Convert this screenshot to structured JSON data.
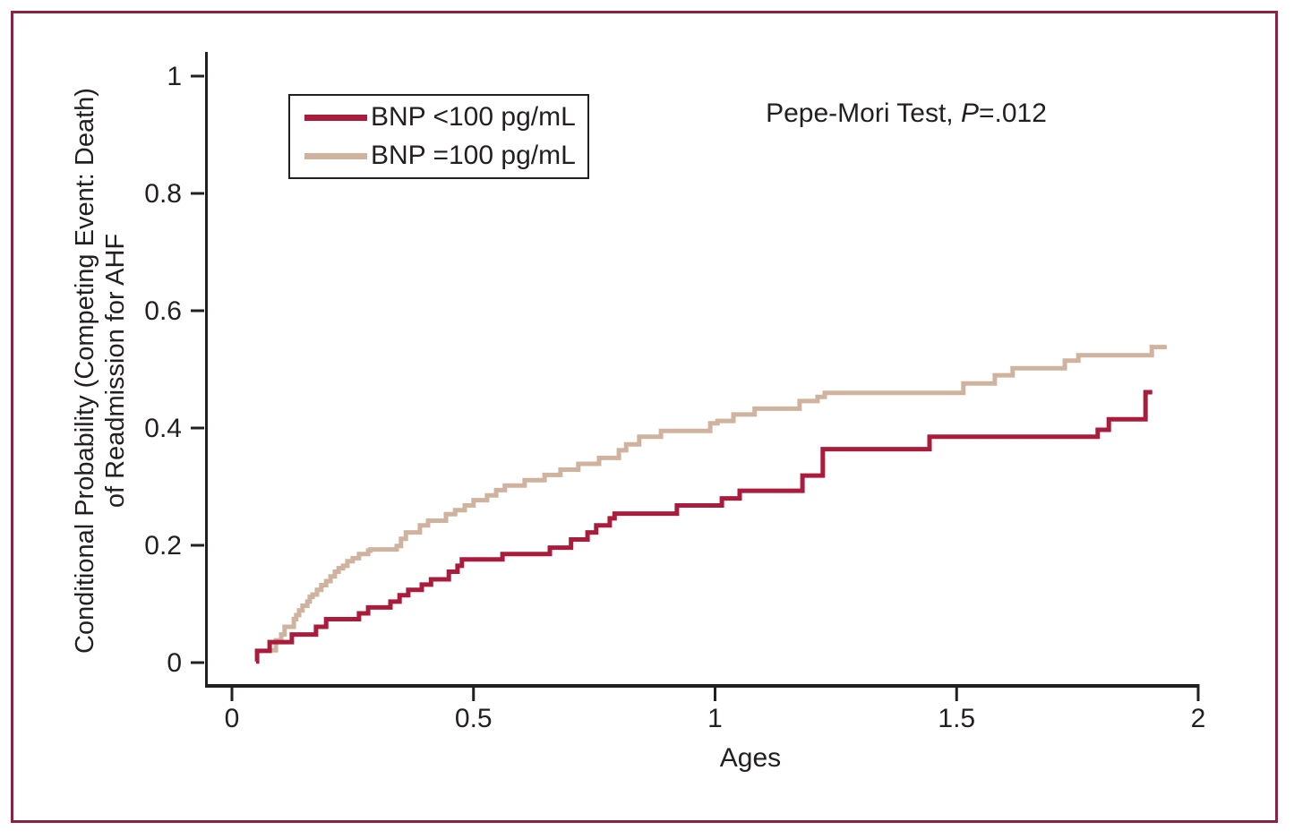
{
  "figure": {
    "background": "#ffffff",
    "border_color": "#8b2245"
  },
  "annotation": {
    "prefix": "Pepe-Mori Test, ",
    "p": "P",
    "value": "=.012"
  },
  "legend": {
    "items": [
      {
        "label": "BNP <100 pg/mL",
        "color": "#aa1c3c"
      },
      {
        "label": "BNP =100 pg/mL",
        "color": "#cfb39e"
      }
    ]
  },
  "axis": {
    "color": "#231f20"
  },
  "chart_data": {
    "type": "line",
    "subtype": "step",
    "title": "",
    "xlabel": "Ages",
    "ylabel": "Conditional Probability (Competing Event: Death) of Readmission for AHF",
    "ylabel_lines": [
      "Conditional Probability (Competing Event: Death)",
      "of Readmission for AHF"
    ],
    "xlim": [
      0,
      2
    ],
    "ylim": [
      0,
      1
    ],
    "x_ticks": [
      0,
      0.5,
      1,
      1.5,
      2
    ],
    "x_tick_labels": [
      "0",
      "0.5",
      "1",
      "1.5",
      "2"
    ],
    "y_ticks": [
      0,
      0.2,
      0.4,
      0.6,
      0.8,
      1
    ],
    "y_tick_labels": [
      "0",
      "0.2",
      "0.4",
      "0.6",
      "0.8",
      "1"
    ],
    "grid": false,
    "legend_position": "upper-left-inside",
    "annotation_text": "Pepe-Mori Test, P=.012",
    "series": [
      {
        "name": "BNP =100 pg/mL",
        "color": "#cfb39e",
        "x_end": 1.935,
        "points": [
          [
            0.076,
            0.021
          ],
          [
            0.091,
            0.038
          ],
          [
            0.102,
            0.048
          ],
          [
            0.109,
            0.061
          ],
          [
            0.128,
            0.074
          ],
          [
            0.133,
            0.081
          ],
          [
            0.139,
            0.089
          ],
          [
            0.146,
            0.097
          ],
          [
            0.156,
            0.104
          ],
          [
            0.161,
            0.112
          ],
          [
            0.167,
            0.116
          ],
          [
            0.176,
            0.124
          ],
          [
            0.185,
            0.132
          ],
          [
            0.195,
            0.139
          ],
          [
            0.204,
            0.147
          ],
          [
            0.213,
            0.155
          ],
          [
            0.221,
            0.161
          ],
          [
            0.23,
            0.165
          ],
          [
            0.239,
            0.173
          ],
          [
            0.25,
            0.178
          ],
          [
            0.263,
            0.185
          ],
          [
            0.282,
            0.191
          ],
          [
            0.287,
            0.193
          ],
          [
            0.341,
            0.199
          ],
          [
            0.35,
            0.211
          ],
          [
            0.36,
            0.222
          ],
          [
            0.389,
            0.234
          ],
          [
            0.406,
            0.242
          ],
          [
            0.443,
            0.253
          ],
          [
            0.462,
            0.26
          ],
          [
            0.482,
            0.268
          ],
          [
            0.5,
            0.277
          ],
          [
            0.528,
            0.285
          ],
          [
            0.547,
            0.294
          ],
          [
            0.565,
            0.302
          ],
          [
            0.606,
            0.311
          ],
          [
            0.647,
            0.32
          ],
          [
            0.68,
            0.329
          ],
          [
            0.717,
            0.339
          ],
          [
            0.76,
            0.349
          ],
          [
            0.801,
            0.362
          ],
          [
            0.816,
            0.372
          ],
          [
            0.843,
            0.385
          ],
          [
            0.888,
            0.395
          ],
          [
            0.99,
            0.408
          ],
          [
            1.005,
            0.412
          ],
          [
            1.038,
            0.423
          ],
          [
            1.082,
            0.433
          ],
          [
            1.175,
            0.446
          ],
          [
            1.212,
            0.453
          ],
          [
            1.227,
            0.46
          ],
          [
            1.514,
            0.476
          ],
          [
            1.579,
            0.49
          ],
          [
            1.616,
            0.502
          ],
          [
            1.724,
            0.515
          ],
          [
            1.752,
            0.524
          ],
          [
            1.904,
            0.538
          ]
        ]
      },
      {
        "name": "BNP <100 pg/mL",
        "color": "#aa1c3c",
        "x_end": 1.905,
        "points": [
          [
            0.05,
            0.002
          ],
          [
            0.052,
            0.02
          ],
          [
            0.078,
            0.035
          ],
          [
            0.124,
            0.048
          ],
          [
            0.174,
            0.061
          ],
          [
            0.195,
            0.074
          ],
          [
            0.263,
            0.084
          ],
          [
            0.282,
            0.094
          ],
          [
            0.328,
            0.104
          ],
          [
            0.347,
            0.115
          ],
          [
            0.365,
            0.124
          ],
          [
            0.393,
            0.133
          ],
          [
            0.412,
            0.142
          ],
          [
            0.449,
            0.155
          ],
          [
            0.467,
            0.165
          ],
          [
            0.476,
            0.176
          ],
          [
            0.56,
            0.185
          ],
          [
            0.658,
            0.196
          ],
          [
            0.702,
            0.21
          ],
          [
            0.736,
            0.222
          ],
          [
            0.754,
            0.234
          ],
          [
            0.782,
            0.246
          ],
          [
            0.792,
            0.254
          ],
          [
            0.921,
            0.268
          ],
          [
            1.014,
            0.28
          ],
          [
            1.051,
            0.293
          ],
          [
            1.181,
            0.319
          ],
          [
            1.223,
            0.364
          ],
          [
            1.444,
            0.385
          ],
          [
            1.792,
            0.397
          ],
          [
            1.815,
            0.415
          ],
          [
            1.891,
            0.461
          ]
        ]
      }
    ]
  }
}
